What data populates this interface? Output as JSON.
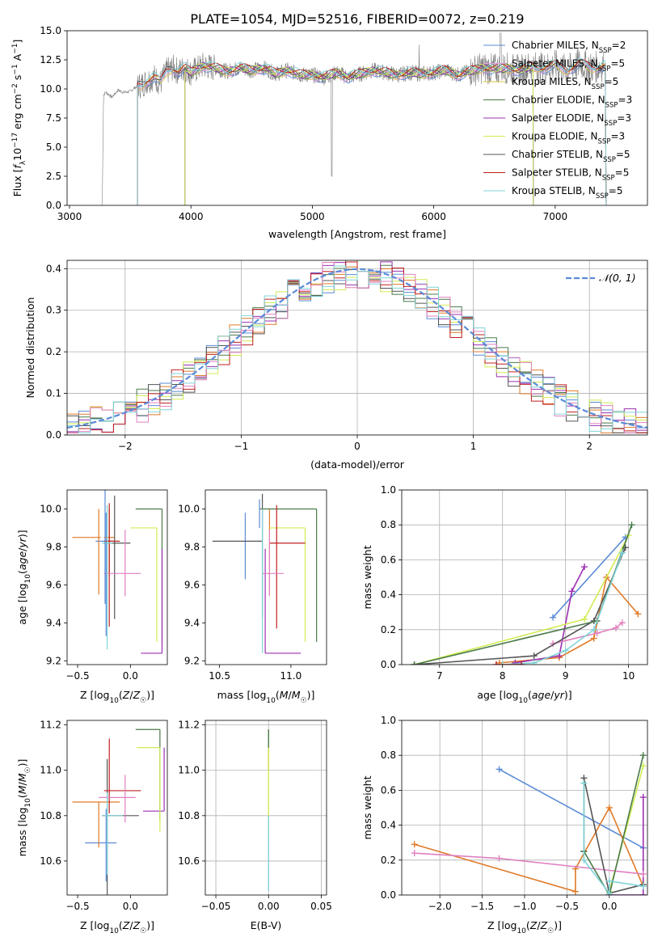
{
  "chart_data": [
    {
      "id": "spectrum",
      "type": "line",
      "title": "PLATE=1054, MJD=52516, FIBERID=0072, z=0.219",
      "xlabel": "wavelength [Angstrom, rest frame]",
      "ylabel": "Flux [f_λ 10^-17 erg cm^-2 s^-1 A^-1]",
      "xlim": [
        2980,
        7760
      ],
      "ylim": [
        0,
        15
      ],
      "xticks": [
        3000,
        4000,
        5000,
        6000,
        7000
      ],
      "yticks": [
        0.0,
        2.5,
        5.0,
        7.5,
        10.0,
        12.5,
        15.0
      ],
      "legend_position": "right",
      "data_series": {
        "name": "data",
        "x": [
          3270,
          3280,
          3300,
          3350,
          3400,
          3450,
          3500,
          3550,
          3600,
          3650,
          3700,
          3750,
          3800,
          3850,
          3900,
          3950,
          4000,
          4100,
          4200,
          4300,
          4400,
          4500,
          4600,
          4700,
          4800,
          4900,
          5000,
          5100,
          5200,
          5300,
          5400,
          5500,
          5600,
          5700,
          5800,
          5900,
          6000,
          6100,
          6200,
          6300,
          6400,
          6500,
          6600,
          6700,
          6800,
          6900,
          7000,
          7100,
          7200,
          7300,
          7400
        ],
        "y": [
          0.3,
          9.5,
          9.7,
          9.3,
          9.9,
          9.7,
          9.8,
          10.2,
          10.4,
          10.8,
          11.0,
          10.5,
          11.5,
          11.8,
          11.5,
          11.8,
          11.4,
          12.0,
          11.8,
          11.5,
          11.8,
          11.6,
          11.8,
          11.3,
          11.6,
          11.2,
          11.2,
          11.0,
          11.4,
          11.0,
          11.3,
          11.6,
          11.4,
          11.2,
          11.4,
          11.3,
          11.4,
          11.6,
          11.2,
          11.5,
          11.8,
          11.7,
          11.8,
          11.6,
          11.9,
          11.8,
          12.0,
          11.6,
          12.2,
          11.8,
          12.0
        ]
      },
      "series": [
        {
          "label": "Chabrier MILES, N_SSP=2",
          "label_parts": [
            "Chabrier MILES, N",
            "SSP",
            "=2"
          ],
          "color": "#5b8bd7"
        },
        {
          "label": "Salpeter MILES, N_SSP=5",
          "label_parts": [
            "Salpeter MILES, N",
            "SSP",
            "=5"
          ],
          "color": "#e8a0e0"
        },
        {
          "label": "Kroupa MILES, N_SSP=5",
          "label_parts": [
            "Kroupa MILES, N",
            "SSP",
            "=5"
          ],
          "color": "#d4c84a"
        },
        {
          "label": "Chabrier ELODIE, N_SSP=3",
          "label_parts": [
            "Chabrier ELODIE, N",
            "SSP",
            "=3"
          ],
          "color": "#4a7a4a"
        },
        {
          "label": "Salpeter ELODIE, N_SSP=3",
          "label_parts": [
            "Salpeter ELODIE, N",
            "SSP",
            "=3"
          ],
          "color": "#9b30b0"
        },
        {
          "label": "Kroupa ELODIE, N_SSP=3",
          "label_parts": [
            "Kroupa ELODIE, N",
            "SSP",
            "=3"
          ],
          "color": "#d0ec50"
        },
        {
          "label": "Chabrier STELIB, N_SSP=5",
          "label_parts": [
            "Chabrier STELIB, N",
            "SSP",
            "=5"
          ],
          "color": "#555555"
        },
        {
          "label": "Salpeter STELIB, N_SSP=5",
          "label_parts": [
            "Salpeter STELIB, N",
            "SSP",
            "=5"
          ],
          "color": "#c02020"
        },
        {
          "label": "Kroupa STELIB, N_SSP=5",
          "label_parts": [
            "Kroupa STELIB, N",
            "SSP",
            "=5"
          ],
          "color": "#80d4d8"
        }
      ],
      "model_start": [
        3560,
        3560,
        3560,
        3950,
        3950,
        3950,
        3560,
        3560,
        3560
      ],
      "model_end": [
        7420,
        7420,
        7420,
        6820,
        6820,
        6820,
        7420,
        7420,
        7420
      ]
    },
    {
      "id": "residuals",
      "type": "histogram",
      "xlabel": "(data-model)/error",
      "ylabel": "Normed distribution",
      "xlim": [
        -2.5,
        2.5
      ],
      "ylim": [
        0,
        0.42
      ],
      "xticks": [
        -2,
        -1,
        0,
        1,
        2
      ],
      "yticks": [
        0.0,
        0.1,
        0.2,
        0.3,
        0.4
      ],
      "grid": true,
      "legend": "𝒩(0, 1)",
      "legend_position": "top-right",
      "reference_curve": {
        "name": "normal",
        "mean": 0,
        "sigma": 1,
        "color": "#5b8bd7",
        "dashed": true
      },
      "bin_width": 0.1,
      "bin_start": -2.5
    },
    {
      "id": "age-vs-Z",
      "type": "scatter",
      "xlabel": "Z [log10(Z/Z☉)]",
      "ylabel": "age [log10(age/yr)]",
      "xlim": [
        -0.6,
        0.35
      ],
      "ylim": [
        9.18,
        10.1
      ],
      "xticks": [
        -0.5,
        0.0
      ],
      "yticks": [
        9.2,
        9.4,
        9.6,
        9.8,
        10.0
      ],
      "points": [
        {
          "color": "#5b8bd7",
          "x": -0.23,
          "y": 9.83,
          "xerr": [
            0.1,
            0.05
          ],
          "yerr": [
            0.5,
            0.15
          ]
        },
        {
          "color": "#e07a28",
          "x": -0.3,
          "y": 9.85,
          "xerr": [
            0.25,
            0.02
          ],
          "yerr": [
            0.3,
            0.15
          ]
        },
        {
          "color": "#e07a28",
          "x": -0.2,
          "y": 9.85,
          "xerr": [
            0.05,
            0.05
          ],
          "yerr": [
            0.2,
            0.15
          ]
        },
        {
          "color": "#4a7a4a",
          "x": 0.3,
          "y": 10.0,
          "xerr": [
            0.25,
            0.0
          ],
          "yerr": [
            0.7,
            0.0
          ]
        },
        {
          "color": "#9b30b0",
          "x": 0.3,
          "y": 9.24,
          "xerr": [
            0.2,
            0.0
          ],
          "yerr": [
            0.0,
            0.55
          ]
        },
        {
          "color": "#d0ec50",
          "x": 0.25,
          "y": 9.9,
          "xerr": [
            0.25,
            0.0
          ],
          "yerr": [
            0.6,
            0.0
          ]
        },
        {
          "color": "#555555",
          "x": -0.15,
          "y": 9.82,
          "xerr": [
            0.1,
            0.15
          ],
          "yerr": [
            0.4,
            0.25
          ]
        },
        {
          "color": "#c02020",
          "x": -0.2,
          "y": 9.83,
          "xerr": [
            0.05,
            0.1
          ],
          "yerr": [
            0.45,
            0.2
          ]
        },
        {
          "color": "#e080c0",
          "x": -0.05,
          "y": 9.66,
          "xerr": [
            0.2,
            0.15
          ],
          "yerr": [
            0.12,
            0.23
          ]
        },
        {
          "color": "#80d4d8",
          "x": -0.22,
          "y": 9.82,
          "xerr": [
            0.05,
            0.05
          ],
          "yerr": [
            0.56,
            0.2
          ]
        },
        {
          "color": "#5b8bd7",
          "x": -0.24,
          "y": 9.9,
          "xerr": [
            0.0,
            0.0
          ],
          "yerr": [
            0.4,
            0.2
          ]
        }
      ]
    },
    {
      "id": "age-vs-mass",
      "type": "scatter",
      "xlabel": "mass [log10(M/M☉)]",
      "ylabel": "",
      "xlim": [
        10.4,
        11.25
      ],
      "ylim": [
        9.18,
        10.1
      ],
      "xticks": [
        10.5,
        11.0
      ],
      "yticks": [
        9.2,
        9.4,
        9.6,
        9.8,
        10.0
      ],
      "points": [
        {
          "color": "#5b8bd7",
          "x": 10.68,
          "y": 9.83,
          "xerr": [
            0.0,
            0.0
          ],
          "yerr": [
            0.2,
            0.15
          ]
        },
        {
          "color": "#e07a28",
          "x": 10.85,
          "y": 9.85,
          "xerr": [
            0.0,
            0.0
          ],
          "yerr": [
            0.3,
            0.15
          ]
        },
        {
          "color": "#4a7a4a",
          "x": 11.18,
          "y": 10.0,
          "xerr": [
            0.4,
            0.0
          ],
          "yerr": [
            0.7,
            0.0
          ]
        },
        {
          "color": "#9b30b0",
          "x": 10.82,
          "y": 9.24,
          "xerr": [
            0.0,
            0.25
          ],
          "yerr": [
            0.0,
            0.55
          ]
        },
        {
          "color": "#d0ec50",
          "x": 11.1,
          "y": 9.9,
          "xerr": [
            0.25,
            0.0
          ],
          "yerr": [
            0.6,
            0.0
          ]
        },
        {
          "color": "#555555",
          "x": 10.8,
          "y": 9.83,
          "xerr": [
            0.35,
            0.0
          ],
          "yerr": [
            0.4,
            0.25
          ]
        },
        {
          "color": "#c02020",
          "x": 10.9,
          "y": 9.82,
          "xerr": [
            0.05,
            0.2
          ],
          "yerr": [
            0.45,
            0.2
          ]
        },
        {
          "color": "#e080c0",
          "x": 10.85,
          "y": 9.66,
          "xerr": [
            0.05,
            0.1
          ],
          "yerr": [
            0.12,
            0.23
          ]
        },
        {
          "color": "#80d4d8",
          "x": 10.8,
          "y": 9.8,
          "xerr": [
            0.0,
            0.0
          ],
          "yerr": [
            0.56,
            0.2
          ]
        },
        {
          "color": "#5b8bd7",
          "x": 10.78,
          "y": 9.9,
          "xerr": [
            0.0,
            0.0
          ],
          "yerr": [
            0.0,
            0.15
          ]
        }
      ]
    },
    {
      "id": "massweight-vs-age",
      "type": "line",
      "xlabel": "age [log10(age/yr)]",
      "ylabel": "mass weight",
      "xlim": [
        6.4,
        10.3
      ],
      "ylim": [
        0,
        1.0
      ],
      "xticks": [
        7,
        8,
        9,
        10
      ],
      "yticks": [
        0.0,
        0.2,
        0.4,
        0.6,
        0.8,
        1.0
      ],
      "grid": true,
      "series": [
        {
          "color": "#5b8bd7",
          "x": [
            8.8,
            9.95
          ],
          "y": [
            0.27,
            0.73
          ]
        },
        {
          "color": "#e07a28",
          "x": [
            7.95,
            8.9,
            9.45,
            9.65,
            10.15
          ],
          "y": [
            0.01,
            0.04,
            0.15,
            0.5,
            0.29
          ]
        },
        {
          "color": "#9b30b0",
          "x": [
            8.2,
            8.9,
            9.1,
            9.3
          ],
          "y": [
            0.01,
            0.05,
            0.42,
            0.56
          ]
        },
        {
          "color": "#e080c0",
          "x": [
            8.8,
            9.5,
            9.8,
            9.9
          ],
          "y": [
            0.12,
            0.18,
            0.21,
            0.24
          ]
        },
        {
          "color": "#d0ec50",
          "x": [
            6.6,
            9.3,
            10.0
          ],
          "y": [
            0.0,
            0.26,
            0.74
          ]
        },
        {
          "color": "#555555",
          "x": [
            6.6,
            8.5,
            9.45,
            9.95
          ],
          "y": [
            0.0,
            0.05,
            0.25,
            0.67
          ]
        },
        {
          "color": "#4a7a4a",
          "x": [
            6.6,
            9.5,
            10.05
          ],
          "y": [
            0.0,
            0.25,
            0.8
          ]
        },
        {
          "color": "#80d4d8",
          "x": [
            8.0,
            8.5,
            9.0,
            9.45,
            9.9
          ],
          "y": [
            0.0,
            0.01,
            0.08,
            0.2,
            0.64
          ]
        },
        {
          "color": "#c02020",
          "x": [
            7.9,
            8.3
          ],
          "y": [
            0.0,
            0.0
          ]
        }
      ]
    },
    {
      "id": "mass-vs-Z",
      "type": "scatter",
      "xlabel": "Z [log10(Z/Z☉)]",
      "ylabel": "mass [log10(M/M☉)]",
      "xlim": [
        -0.6,
        0.35
      ],
      "ylim": [
        10.45,
        11.22
      ],
      "xticks": [
        -0.5,
        0.0
      ],
      "yticks": [
        10.6,
        10.8,
        11.0,
        11.2
      ],
      "points": [
        {
          "color": "#5b8bd7",
          "x": -0.23,
          "y": 10.68,
          "xerr": [
            0.2,
            0.1
          ],
          "yerr": [
            0.17,
            0.15
          ]
        },
        {
          "color": "#e07a28",
          "x": -0.3,
          "y": 10.86,
          "xerr": [
            0.25,
            0.2
          ],
          "yerr": [
            0.2,
            0.0
          ]
        },
        {
          "color": "#4a7a4a",
          "x": 0.28,
          "y": 11.18,
          "xerr": [
            0.23,
            0.0
          ],
          "yerr": [
            0.4,
            0.0
          ]
        },
        {
          "color": "#9b30b0",
          "x": 0.32,
          "y": 10.82,
          "xerr": [
            0.2,
            0.0
          ],
          "yerr": [
            0.0,
            0.28
          ]
        },
        {
          "color": "#d0ec50",
          "x": 0.28,
          "y": 11.1,
          "xerr": [
            0.22,
            0.0
          ],
          "yerr": [
            0.37,
            0.0
          ]
        },
        {
          "color": "#555555",
          "x": -0.22,
          "y": 10.8,
          "xerr": [
            0.05,
            0.3
          ],
          "yerr": [
            0.35,
            0.25
          ]
        },
        {
          "color": "#c02020",
          "x": -0.2,
          "y": 10.91,
          "xerr": [
            0.05,
            0.3
          ],
          "yerr": [
            0.1,
            0.23
          ]
        },
        {
          "color": "#e080c0",
          "x": -0.05,
          "y": 10.88,
          "xerr": [
            0.25,
            0.1
          ],
          "yerr": [
            0.11,
            0.1
          ]
        },
        {
          "color": "#80d4d8",
          "x": -0.22,
          "y": 10.8,
          "xerr": [
            0.05,
            0.15
          ],
          "yerr": [
            0.26,
            0.1
          ]
        }
      ]
    },
    {
      "id": "mass-vs-ebv",
      "type": "scatter",
      "xlabel": "E(B-V)",
      "ylabel": "",
      "xlim": [
        -0.06,
        0.055
      ],
      "ylim": [
        10.45,
        11.22
      ],
      "xticks": [
        -0.05,
        0.0,
        0.05
      ],
      "yticks": [
        10.6,
        10.8,
        11.0,
        11.2
      ],
      "grid": true,
      "points": [
        {
          "color": "#4a7a4a",
          "x": 0.0,
          "y": 11.1,
          "xerr": [
            0,
            0
          ],
          "yerr": [
            0.05,
            0.08
          ]
        },
        {
          "color": "#c02020",
          "x": 0.0,
          "y": 11.05,
          "xerr": [
            0,
            0
          ],
          "yerr": [
            0.05,
            0.05
          ]
        },
        {
          "color": "#d0ec50",
          "x": 0.0,
          "y": 10.9,
          "xerr": [
            0,
            0
          ],
          "yerr": [
            0.2,
            0.2
          ]
        },
        {
          "color": "#80d4d8",
          "x": 0.0,
          "y": 10.6,
          "xerr": [
            0,
            0
          ],
          "yerr": [
            0.13,
            0.2
          ]
        }
      ]
    },
    {
      "id": "massweight-vs-Z",
      "type": "line",
      "xlabel": "Z [log10(Z/Z☉)]",
      "ylabel": "mass weight",
      "xlim": [
        -2.45,
        0.45
      ],
      "ylim": [
        0,
        1.0
      ],
      "xticks": [
        -2.0,
        -1.5,
        -1.0,
        -0.5,
        0.0
      ],
      "yticks": [
        0.0,
        0.2,
        0.4,
        0.6,
        0.8,
        1.0
      ],
      "grid": true,
      "series": [
        {
          "color": "#5b8bd7",
          "x": [
            -1.3,
            0.4
          ],
          "y": [
            0.72,
            0.27
          ]
        },
        {
          "color": "#e07a28",
          "x": [
            -2.3,
            -0.4,
            -0.4,
            0.0,
            0.4
          ],
          "y": [
            0.29,
            0.02,
            0.15,
            0.5,
            0.05
          ]
        },
        {
          "color": "#9b30b0",
          "x": [
            0.0,
            0.4,
            0.4
          ],
          "y": [
            0.0,
            0.0,
            0.56
          ]
        },
        {
          "color": "#e080c0",
          "x": [
            -2.3,
            -1.3,
            0.4
          ],
          "y": [
            0.24,
            0.21,
            0.12
          ]
        },
        {
          "color": "#d0ec50",
          "x": [
            0.0,
            0.4
          ],
          "y": [
            0.02,
            0.74
          ]
        },
        {
          "color": "#555555",
          "x": [
            -0.3,
            -0.3,
            0.0,
            0.4
          ],
          "y": [
            0.25,
            0.67,
            0.01,
            0.06
          ]
        },
        {
          "color": "#4a7a4a",
          "x": [
            -0.3,
            0.0,
            0.4
          ],
          "y": [
            0.25,
            0.0,
            0.8
          ]
        },
        {
          "color": "#80d4d8",
          "x": [
            -0.3,
            -0.3,
            0.0,
            0.0,
            0.4
          ],
          "y": [
            0.64,
            0.2,
            0.01,
            0.08,
            0.05
          ]
        }
      ]
    }
  ]
}
